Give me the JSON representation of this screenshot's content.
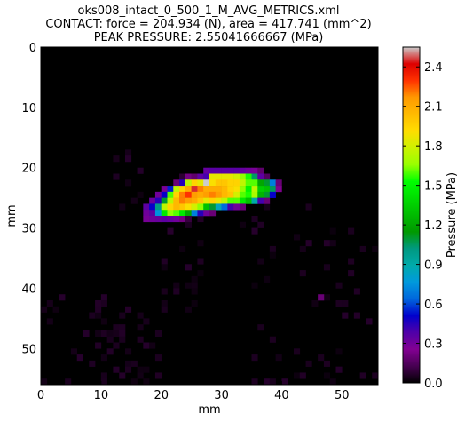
{
  "chart_data": {
    "type": "heatmap",
    "title_lines": [
      "oks008_intact_0_500_1_M_AVG_METRICS.xml",
      "CONTACT: force = 204.934 (N), area = 417.741 (mm^2)",
      "PEAK PRESSURE: 2.55041666667 (MPa)"
    ],
    "xlabel": "mm",
    "ylabel": "mm",
    "x_ticks": [
      0,
      10,
      20,
      30,
      40,
      50
    ],
    "y_ticks": [
      0,
      10,
      20,
      30,
      40,
      50
    ],
    "xlim": [
      0,
      56
    ],
    "ylim": [
      56,
      0
    ],
    "colorbar": {
      "label": "Pressure (MPa)",
      "ticks": [
        "0.0",
        "0.3",
        "0.6",
        "0.9",
        "1.2",
        "1.5",
        "1.8",
        "2.1",
        "2.4"
      ],
      "range": [
        0,
        2.55
      ],
      "colormap": "nipy_spectral"
    },
    "background_color": "#000000",
    "high_pressure_cells": [
      [
        27,
        20,
        0.33
      ],
      [
        28,
        20,
        0.36
      ],
      [
        29,
        20,
        0.36
      ],
      [
        30,
        20,
        0.36
      ],
      [
        31,
        20,
        0.36
      ],
      [
        32,
        20,
        0.36
      ],
      [
        33,
        20,
        0.33
      ],
      [
        34,
        20,
        0.3
      ],
      [
        35,
        20,
        0.28
      ],
      [
        36,
        20,
        0.18
      ],
      [
        23,
        21,
        0.08
      ],
      [
        24,
        21,
        0.22
      ],
      [
        25,
        21,
        0.18
      ],
      [
        26,
        21,
        0.35
      ],
      [
        27,
        21,
        0.4
      ],
      [
        28,
        21,
        1.85
      ],
      [
        29,
        21,
        1.85
      ],
      [
        30,
        21,
        1.85
      ],
      [
        31,
        21,
        1.85
      ],
      [
        32,
        21,
        1.8
      ],
      [
        33,
        21,
        1.65
      ],
      [
        34,
        21,
        1.55
      ],
      [
        35,
        21,
        1.05
      ],
      [
        36,
        21,
        0.35
      ],
      [
        37,
        21,
        0.15
      ],
      [
        22,
        22,
        0.2
      ],
      [
        23,
        22,
        0.45
      ],
      [
        24,
        22,
        1.75
      ],
      [
        25,
        22,
        1.95
      ],
      [
        26,
        22,
        1.85
      ],
      [
        27,
        22,
        2.55
      ],
      [
        28,
        22,
        1.9
      ],
      [
        29,
        22,
        2.0
      ],
      [
        30,
        22,
        2.0
      ],
      [
        31,
        22,
        1.95
      ],
      [
        32,
        22,
        1.95
      ],
      [
        33,
        22,
        1.75
      ],
      [
        34,
        22,
        1.6
      ],
      [
        35,
        22,
        1.6
      ],
      [
        36,
        22,
        1.2
      ],
      [
        37,
        22,
        1.1
      ],
      [
        38,
        22,
        0.7
      ],
      [
        39,
        22,
        0.2
      ],
      [
        20,
        23,
        0.28
      ],
      [
        21,
        23,
        0.55
      ],
      [
        22,
        23,
        1.75
      ],
      [
        23,
        23,
        1.95
      ],
      [
        24,
        23,
        2.1
      ],
      [
        25,
        23,
        2.45
      ],
      [
        26,
        23,
        2.2
      ],
      [
        27,
        23,
        2.1
      ],
      [
        28,
        23,
        2.1
      ],
      [
        29,
        23,
        2.1
      ],
      [
        30,
        23,
        2.05
      ],
      [
        31,
        23,
        1.95
      ],
      [
        32,
        23,
        1.9
      ],
      [
        33,
        23,
        1.65
      ],
      [
        34,
        23,
        1.5
      ],
      [
        35,
        23,
        1.75
      ],
      [
        36,
        23,
        1.35
      ],
      [
        37,
        23,
        1.3
      ],
      [
        38,
        23,
        1.05
      ],
      [
        39,
        23,
        0.25
      ],
      [
        19,
        24,
        0.3
      ],
      [
        20,
        24,
        0.5
      ],
      [
        21,
        24,
        1.6
      ],
      [
        22,
        24,
        1.95
      ],
      [
        23,
        24,
        2.2
      ],
      [
        24,
        24,
        2.3
      ],
      [
        25,
        24,
        2.15
      ],
      [
        26,
        24,
        2.1
      ],
      [
        27,
        24,
        2.15
      ],
      [
        28,
        24,
        2.2
      ],
      [
        29,
        24,
        2.15
      ],
      [
        30,
        24,
        2.05
      ],
      [
        31,
        24,
        2.0
      ],
      [
        32,
        24,
        1.8
      ],
      [
        33,
        24,
        1.6
      ],
      [
        34,
        24,
        1.55
      ],
      [
        35,
        24,
        1.7
      ],
      [
        36,
        24,
        1.25
      ],
      [
        37,
        24,
        1.1
      ],
      [
        38,
        24,
        0.5
      ],
      [
        18,
        25,
        0.32
      ],
      [
        19,
        25,
        0.45
      ],
      [
        20,
        25,
        1.1
      ],
      [
        21,
        25,
        1.75
      ],
      [
        22,
        25,
        2.05
      ],
      [
        23,
        25,
        2.2
      ],
      [
        24,
        25,
        2.15
      ],
      [
        25,
        25,
        2.1
      ],
      [
        26,
        25,
        2.0
      ],
      [
        27,
        25,
        1.85
      ],
      [
        28,
        25,
        1.95
      ],
      [
        29,
        25,
        1.85
      ],
      [
        30,
        25,
        1.75
      ],
      [
        31,
        25,
        1.6
      ],
      [
        32,
        25,
        1.6
      ],
      [
        33,
        25,
        1.45
      ],
      [
        34,
        25,
        1.3
      ],
      [
        35,
        25,
        0.9
      ],
      [
        36,
        25,
        0.4
      ],
      [
        37,
        25,
        0.2
      ],
      [
        17,
        26,
        0.35
      ],
      [
        18,
        26,
        0.5
      ],
      [
        19,
        26,
        1.0
      ],
      [
        20,
        26,
        1.75
      ],
      [
        21,
        26,
        1.95
      ],
      [
        22,
        26,
        2.05
      ],
      [
        23,
        26,
        2.0
      ],
      [
        24,
        26,
        1.9
      ],
      [
        25,
        26,
        1.8
      ],
      [
        26,
        26,
        1.65
      ],
      [
        27,
        26,
        1.3
      ],
      [
        28,
        26,
        1.1
      ],
      [
        29,
        26,
        0.85
      ],
      [
        30,
        26,
        0.65
      ],
      [
        31,
        26,
        0.4
      ],
      [
        32,
        26,
        0.3
      ],
      [
        33,
        26,
        0.2
      ],
      [
        17,
        27,
        0.3
      ],
      [
        18,
        27,
        0.35
      ],
      [
        19,
        27,
        0.75
      ],
      [
        20,
        27,
        1.45
      ],
      [
        21,
        27,
        1.65
      ],
      [
        22,
        27,
        1.6
      ],
      [
        23,
        27,
        1.45
      ],
      [
        24,
        27,
        1.2
      ],
      [
        25,
        27,
        0.7
      ],
      [
        26,
        27,
        0.45
      ],
      [
        27,
        27,
        0.3
      ],
      [
        28,
        27,
        0.2
      ],
      [
        17,
        28,
        0.28
      ],
      [
        18,
        28,
        0.3
      ],
      [
        19,
        28,
        0.32
      ],
      [
        20,
        28,
        0.35
      ],
      [
        21,
        28,
        0.33
      ],
      [
        22,
        28,
        0.3
      ],
      [
        23,
        28,
        0.22
      ],
      [
        24,
        28,
        0.1
      ]
    ]
  }
}
